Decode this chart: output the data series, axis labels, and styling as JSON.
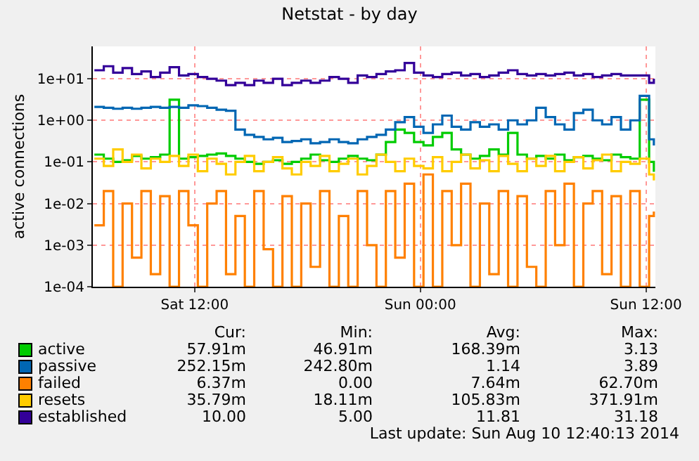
{
  "chart_data": {
    "type": "step",
    "title": "Netstat - by day",
    "ylabel": "active connections",
    "log": "y",
    "grid": true,
    "legend": "bottom left",
    "marker": "none",
    "line_style": "solid",
    "x": [
      "2014-08-09T06:40",
      "2014-08-09T07:10",
      "2014-08-09T07:40",
      "2014-08-09T08:10",
      "2014-08-09T08:40",
      "2014-08-09T09:10",
      "2014-08-09T09:40",
      "2014-08-09T10:10",
      "2014-08-09T10:40",
      "2014-08-09T11:10",
      "2014-08-09T11:40",
      "2014-08-09T12:10",
      "2014-08-09T12:40",
      "2014-08-09T13:10",
      "2014-08-09T13:40",
      "2014-08-09T14:10",
      "2014-08-09T14:40",
      "2014-08-09T15:10",
      "2014-08-09T15:40",
      "2014-08-09T16:10",
      "2014-08-09T16:40",
      "2014-08-09T17:10",
      "2014-08-09T17:40",
      "2014-08-09T18:10",
      "2014-08-09T18:40",
      "2014-08-09T19:10",
      "2014-08-09T19:40",
      "2014-08-09T20:10",
      "2014-08-09T20:40",
      "2014-08-09T21:10",
      "2014-08-09T21:40",
      "2014-08-09T22:10",
      "2014-08-09T22:40",
      "2014-08-09T23:10",
      "2014-08-09T23:40",
      "2014-08-10T00:10",
      "2014-08-10T00:40",
      "2014-08-10T01:10",
      "2014-08-10T01:40",
      "2014-08-10T02:10",
      "2014-08-10T02:40",
      "2014-08-10T03:10",
      "2014-08-10T03:40",
      "2014-08-10T04:10",
      "2014-08-10T04:40",
      "2014-08-10T05:10",
      "2014-08-10T05:40",
      "2014-08-10T06:10",
      "2014-08-10T06:40",
      "2014-08-10T07:10",
      "2014-08-10T07:40",
      "2014-08-10T08:10",
      "2014-08-10T08:40",
      "2014-08-10T09:10",
      "2014-08-10T09:40",
      "2014-08-10T10:10",
      "2014-08-10T10:40",
      "2014-08-10T11:10",
      "2014-08-10T11:40",
      "2014-08-10T12:10",
      "2014-08-10T12:25"
    ],
    "xlim": [
      "2014-08-09T06:35",
      "2014-08-10T12:30"
    ],
    "xticks": [
      {
        "value": "2014-08-09T12:00",
        "label": "Sat 12:00"
      },
      {
        "value": "2014-08-10T00:00",
        "label": "Sun 00:00"
      },
      {
        "value": "2014-08-10T12:00",
        "label": "Sun 12:00"
      }
    ],
    "ylim": [
      0.0001,
      60
    ],
    "yticks": [
      {
        "value": 0.0001,
        "label": "1e-04"
      },
      {
        "value": 0.001,
        "label": "1e-03"
      },
      {
        "value": 0.01,
        "label": "1e-02"
      },
      {
        "value": 0.1,
        "label": "1e-01"
      },
      {
        "value": 1,
        "label": "1e+00"
      },
      {
        "value": 10,
        "label": "1e+01"
      }
    ],
    "series": [
      {
        "name": "active",
        "color": "#00cc00",
        "values": [
          0.15,
          0.12,
          0.1,
          0.11,
          0.14,
          0.12,
          0.13,
          0.15,
          3.13,
          0.12,
          0.13,
          0.14,
          0.15,
          0.16,
          0.14,
          0.12,
          0.1,
          0.09,
          0.1,
          0.11,
          0.09,
          0.1,
          0.12,
          0.15,
          0.11,
          0.1,
          0.12,
          0.14,
          0.12,
          0.11,
          0.15,
          0.3,
          0.6,
          0.5,
          0.3,
          0.25,
          0.4,
          0.5,
          0.2,
          0.15,
          0.12,
          0.14,
          0.2,
          0.15,
          0.5,
          0.15,
          0.12,
          0.14,
          0.12,
          0.15,
          0.11,
          0.13,
          0.14,
          0.12,
          0.11,
          0.15,
          0.13,
          0.12,
          3.13,
          0.1,
          0.058
        ]
      },
      {
        "name": "passive",
        "color": "#0066b3",
        "values": [
          2.1,
          2.0,
          1.9,
          2.0,
          1.9,
          2.0,
          2.1,
          2.0,
          2.1,
          2.0,
          2.3,
          2.2,
          2.0,
          1.8,
          1.7,
          0.6,
          0.45,
          0.4,
          0.35,
          0.38,
          0.3,
          0.32,
          0.35,
          0.28,
          0.3,
          0.35,
          0.3,
          0.28,
          0.35,
          0.4,
          0.45,
          0.6,
          0.9,
          1.2,
          0.7,
          0.5,
          0.8,
          1.3,
          0.7,
          0.6,
          0.9,
          0.7,
          0.8,
          0.6,
          1.0,
          0.8,
          1.0,
          2.0,
          1.2,
          0.8,
          0.6,
          1.5,
          1.8,
          1.0,
          0.8,
          1.2,
          0.6,
          1.0,
          3.89,
          0.35,
          0.25
        ]
      },
      {
        "name": "failed",
        "color": "#ff8000",
        "values": [
          0.003,
          0.02,
          0.0001,
          0.01,
          0.0005,
          0.02,
          0.0002,
          0.015,
          0.0001,
          0.02,
          0.003,
          0.0001,
          0.01,
          0.02,
          0.0002,
          0.005,
          0.0001,
          0.02,
          0.0008,
          0.0001,
          0.015,
          0.0001,
          0.01,
          0.0003,
          0.02,
          0.0001,
          0.005,
          0.0001,
          0.02,
          0.001,
          0.0001,
          0.02,
          0.0005,
          0.03,
          0.0001,
          0.05,
          0.0001,
          0.02,
          0.001,
          0.03,
          0.0001,
          0.01,
          0.0002,
          0.02,
          0.0001,
          0.015,
          0.0003,
          0.0001,
          0.02,
          0.001,
          0.03,
          0.0001,
          0.01,
          0.02,
          0.0002,
          0.015,
          0.0001,
          0.02,
          0.0001,
          0.005,
          0.0064
        ]
      },
      {
        "name": "resets",
        "color": "#ffcc00",
        "values": [
          0.12,
          0.08,
          0.2,
          0.1,
          0.15,
          0.07,
          0.12,
          0.1,
          0.14,
          0.08,
          0.15,
          0.06,
          0.12,
          0.09,
          0.05,
          0.1,
          0.14,
          0.06,
          0.1,
          0.13,
          0.07,
          0.05,
          0.1,
          0.08,
          0.14,
          0.06,
          0.09,
          0.12,
          0.05,
          0.08,
          0.15,
          0.1,
          0.06,
          0.12,
          0.08,
          0.07,
          0.13,
          0.06,
          0.1,
          0.15,
          0.07,
          0.11,
          0.06,
          0.14,
          0.09,
          0.06,
          0.12,
          0.08,
          0.14,
          0.06,
          0.1,
          0.13,
          0.07,
          0.11,
          0.15,
          0.06,
          0.1,
          0.09,
          0.12,
          0.05,
          0.036
        ]
      },
      {
        "name": "established",
        "color": "#330099",
        "values": [
          16,
          20,
          14,
          18,
          13,
          15,
          11,
          14,
          19,
          12,
          13,
          11,
          10,
          9,
          7,
          8,
          7,
          9,
          8,
          10,
          7,
          8,
          9,
          8,
          9,
          11,
          10,
          8,
          12,
          11,
          13,
          15,
          16,
          24,
          14,
          12,
          11,
          13,
          14,
          12,
          13,
          11,
          12,
          14,
          16,
          13,
          12,
          13,
          12,
          13,
          14,
          12,
          13,
          11,
          12,
          13,
          12,
          12,
          12,
          8,
          10
        ]
      }
    ],
    "annotations": [
      "Cur:",
      "Min:",
      "Avg:",
      "Max:",
      "57.91m",
      "46.91m",
      "168.39m",
      "3.13",
      "252.15m",
      "242.80m",
      "1.14",
      "3.89",
      "6.37m",
      "0.00",
      "7.64m",
      "62.70m",
      "35.79m",
      "18.11m",
      "105.83m",
      "371.91m",
      "10.00",
      "5.00",
      "11.81",
      "31.18",
      "Last update: Sun Aug 10 12:40:13 2014"
    ]
  }
}
